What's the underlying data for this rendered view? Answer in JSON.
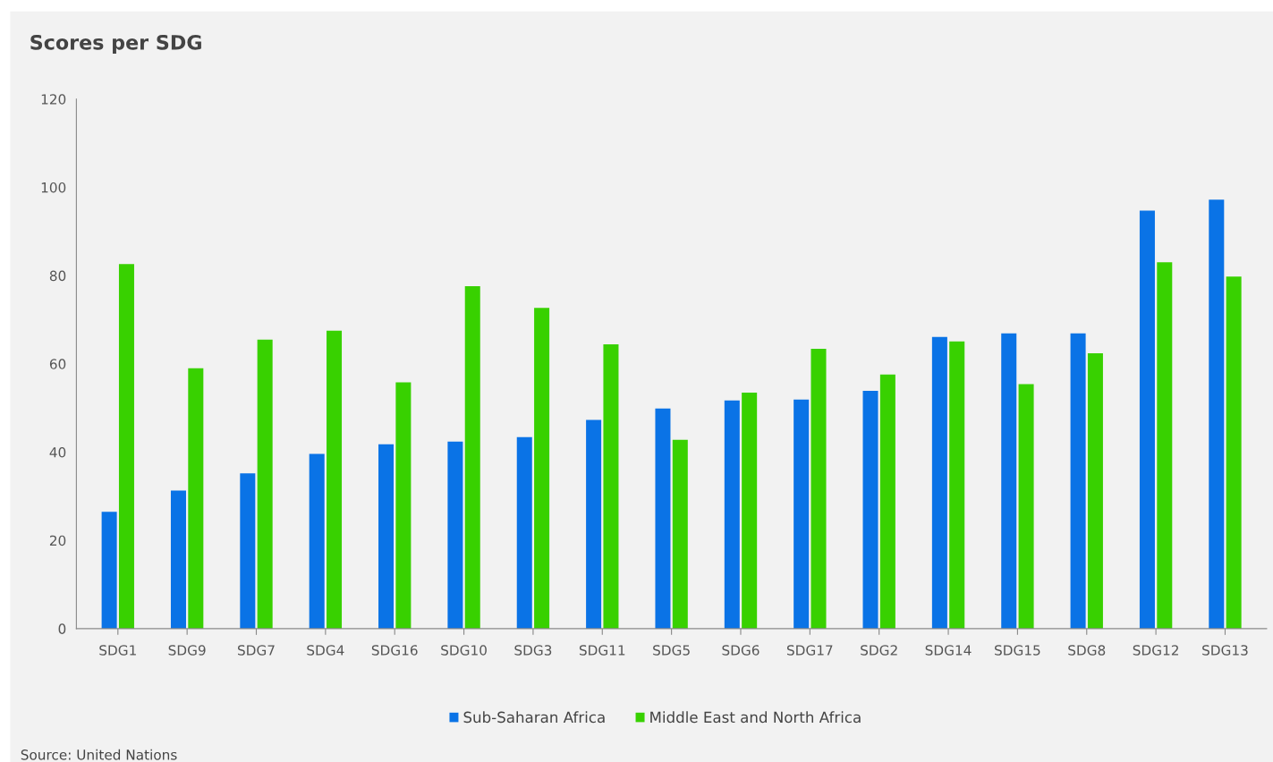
{
  "chart_data": {
    "type": "bar",
    "title": "Scores per SDG",
    "categories": [
      "SDG1",
      "SDG9",
      "SDG7",
      "SDG4",
      "SDG16",
      "SDG10",
      "SDG3",
      "SDG11",
      "SDG5",
      "SDG6",
      "SDG17",
      "SDG2",
      "SDG14",
      "SDG15",
      "SDG8",
      "SDG12",
      "SDG13"
    ],
    "series": [
      {
        "name": "Sub-Saharan Africa",
        "color": "#0a73e6",
        "values": [
          26.5,
          31.3,
          35.2,
          39.6,
          41.8,
          42.4,
          43.4,
          47.3,
          49.9,
          51.7,
          51.9,
          53.9,
          66.1,
          66.9,
          66.9,
          94.7,
          97.2
        ]
      },
      {
        "name": "Middle East and North Africa",
        "color": "#38d100",
        "values": [
          82.6,
          59.0,
          65.5,
          67.5,
          55.8,
          77.6,
          72.7,
          64.4,
          42.8,
          53.5,
          63.4,
          57.6,
          65.1,
          55.4,
          62.4,
          83.0,
          79.8
        ]
      }
    ],
    "ylim": [
      0,
      120
    ],
    "yticks": [
      0,
      20,
      40,
      60,
      80,
      100,
      120
    ],
    "grid": false,
    "legend": "bottom",
    "annotations": [
      "Source: United Nations"
    ]
  }
}
